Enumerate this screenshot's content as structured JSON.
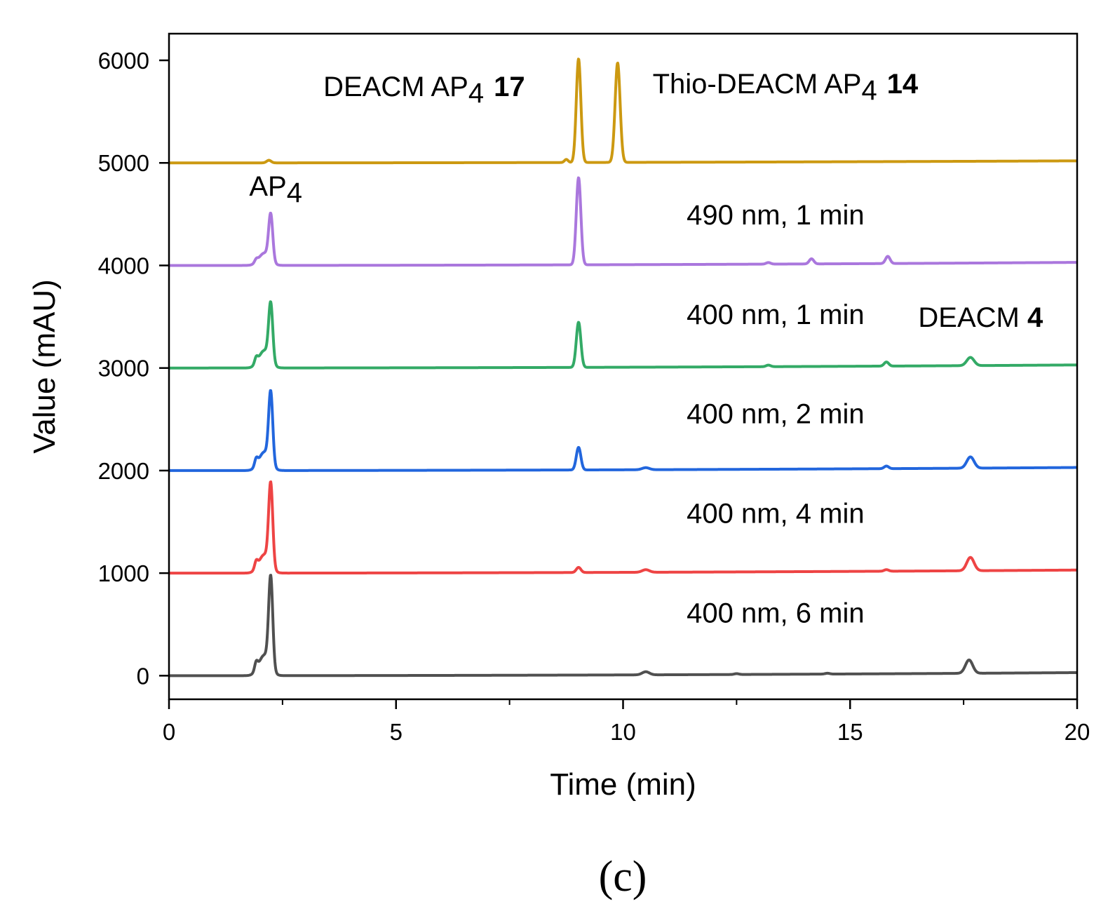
{
  "chart_data": {
    "type": "line",
    "xlabel": "Time (min)",
    "ylabel": "Value (mAU)",
    "xlim": [
      0,
      20
    ],
    "ylim": [
      -230,
      6260
    ],
    "x_ticks": [
      0,
      5,
      10,
      15,
      20
    ],
    "x_minor_ticks": [
      2.5,
      7.5,
      12.5,
      17.5
    ],
    "y_ticks": [
      0,
      1000,
      2000,
      3000,
      4000,
      5000,
      6000
    ],
    "grid": false,
    "legend": "none",
    "panel_label": "(c)",
    "series": [
      {
        "color": "#505050",
        "baseline": 0,
        "end_value": 30,
        "peaks": [
          {
            "x": 1.92,
            "height": 80,
            "width": 0.035
          },
          {
            "x": 2.1,
            "height": 200,
            "width": 0.12
          },
          {
            "x": 2.24,
            "height": 880,
            "width": 0.045
          },
          {
            "x": 10.5,
            "height": 30,
            "width": 0.08
          },
          {
            "x": 12.5,
            "height": 8,
            "width": 0.05
          },
          {
            "x": 14.5,
            "height": 8,
            "width": 0.05
          },
          {
            "x": 17.62,
            "height": 130,
            "width": 0.08
          }
        ]
      },
      {
        "color": "#ee4444",
        "baseline": 1000,
        "end_value": 1030,
        "peaks": [
          {
            "x": 1.92,
            "height": 70,
            "width": 0.035
          },
          {
            "x": 2.1,
            "height": 180,
            "width": 0.12
          },
          {
            "x": 2.24,
            "height": 800,
            "width": 0.045
          },
          {
            "x": 9.02,
            "height": 50,
            "width": 0.05
          },
          {
            "x": 10.5,
            "height": 25,
            "width": 0.08
          },
          {
            "x": 15.8,
            "height": 15,
            "width": 0.05
          },
          {
            "x": 17.65,
            "height": 130,
            "width": 0.08
          }
        ]
      },
      {
        "color": "#2266dd",
        "baseline": 2000,
        "end_value": 2030,
        "peaks": [
          {
            "x": 1.92,
            "height": 70,
            "width": 0.035
          },
          {
            "x": 2.1,
            "height": 180,
            "width": 0.12
          },
          {
            "x": 2.24,
            "height": 690,
            "width": 0.045
          },
          {
            "x": 9.02,
            "height": 220,
            "width": 0.05
          },
          {
            "x": 10.5,
            "height": 20,
            "width": 0.08
          },
          {
            "x": 15.8,
            "height": 25,
            "width": 0.05
          },
          {
            "x": 17.65,
            "height": 110,
            "width": 0.08
          }
        ]
      },
      {
        "color": "#33aa66",
        "baseline": 3000,
        "end_value": 3030,
        "peaks": [
          {
            "x": 1.92,
            "height": 60,
            "width": 0.035
          },
          {
            "x": 2.1,
            "height": 170,
            "width": 0.12
          },
          {
            "x": 2.24,
            "height": 560,
            "width": 0.045
          },
          {
            "x": 9.02,
            "height": 440,
            "width": 0.05
          },
          {
            "x": 13.2,
            "height": 15,
            "width": 0.05
          },
          {
            "x": 15.8,
            "height": 40,
            "width": 0.05
          },
          {
            "x": 17.65,
            "height": 80,
            "width": 0.08
          }
        ]
      },
      {
        "color": "#aa77dd",
        "baseline": 4000,
        "end_value": 4030,
        "peaks": [
          {
            "x": 1.92,
            "height": 30,
            "width": 0.035
          },
          {
            "x": 2.1,
            "height": 120,
            "width": 0.12
          },
          {
            "x": 2.24,
            "height": 450,
            "width": 0.045
          },
          {
            "x": 9.02,
            "height": 850,
            "width": 0.05
          },
          {
            "x": 13.2,
            "height": 15,
            "width": 0.05
          },
          {
            "x": 14.15,
            "height": 50,
            "width": 0.05
          },
          {
            "x": 15.83,
            "height": 70,
            "width": 0.05
          }
        ]
      },
      {
        "color": "#cc9911",
        "baseline": 5000,
        "end_value": 5020,
        "peaks": [
          {
            "x": 2.2,
            "height": 25,
            "width": 0.05
          },
          {
            "x": 8.75,
            "height": 30,
            "width": 0.04
          },
          {
            "x": 9.02,
            "height": 1010,
            "width": 0.05
          },
          {
            "x": 9.88,
            "height": 970,
            "width": 0.055
          }
        ]
      }
    ],
    "annotations": [
      {
        "x": 2.35,
        "y": 4680,
        "anchor": "middle",
        "main": "AP",
        "sub": "4",
        "bold": ""
      },
      {
        "x": 3.4,
        "y": 5650,
        "anchor": "start",
        "main": "DEACM AP",
        "sub": "4",
        "bold": "17"
      },
      {
        "x": 10.65,
        "y": 5680,
        "anchor": "start",
        "main": "Thio-DEACM AP",
        "sub": "4",
        "bold": "14"
      },
      {
        "x": 11.4,
        "y": 4400,
        "anchor": "start",
        "main": "490 nm, 1 min",
        "sub": "",
        "bold": ""
      },
      {
        "x": 11.4,
        "y": 3430,
        "anchor": "start",
        "main": "400 nm, 1 min",
        "sub": "",
        "bold": ""
      },
      {
        "x": 16.5,
        "y": 3400,
        "anchor": "start",
        "main": "DEACM ",
        "sub": "",
        "bold": "4"
      },
      {
        "x": 11.4,
        "y": 2460,
        "anchor": "start",
        "main": "400 nm, 2 min",
        "sub": "",
        "bold": ""
      },
      {
        "x": 11.4,
        "y": 1490,
        "anchor": "start",
        "main": "400 nm, 4 min",
        "sub": "",
        "bold": ""
      },
      {
        "x": 11.4,
        "y": 520,
        "anchor": "start",
        "main": "400 nm, 6 min",
        "sub": "",
        "bold": ""
      }
    ]
  }
}
